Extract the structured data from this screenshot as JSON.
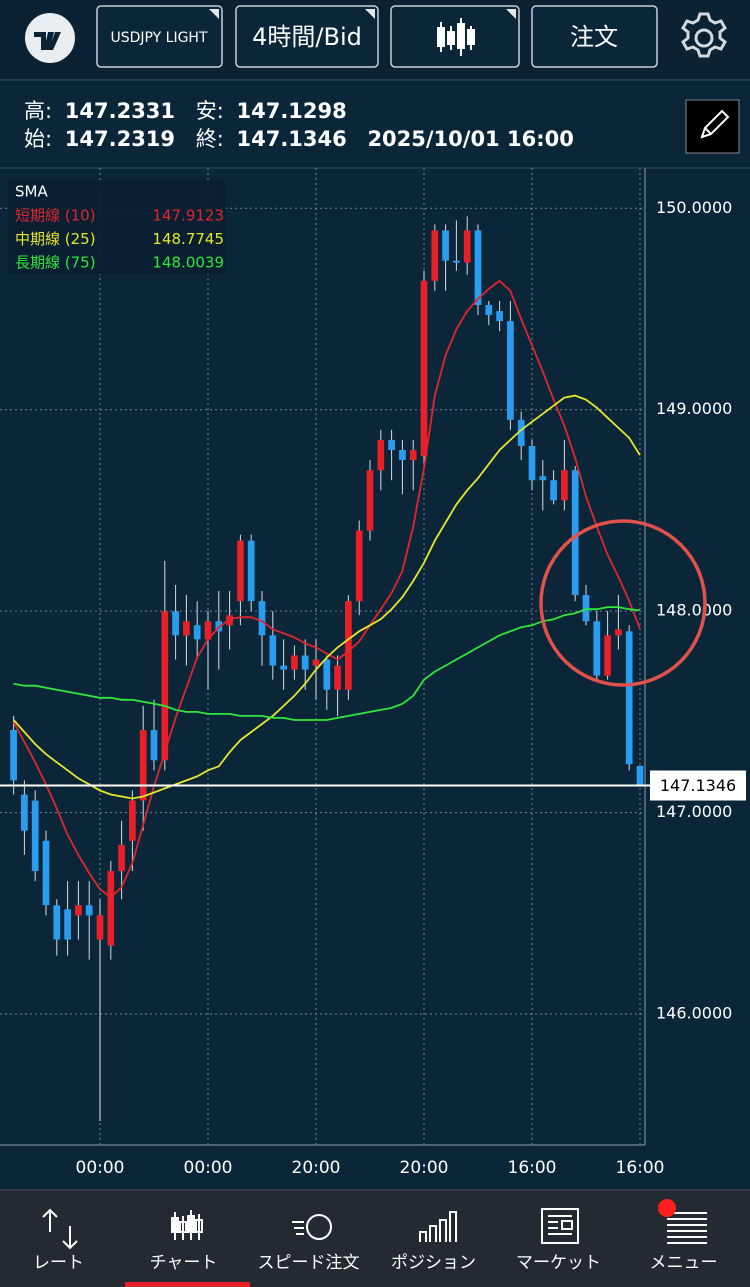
{
  "top_bar": {
    "symbol": "USDJPY LIGHT",
    "timeframe": "4時間/Bid",
    "order_button": "注文"
  },
  "ohlc_labels": {
    "high": "高:",
    "low": "安:",
    "open": "始:",
    "close": "終:"
  },
  "datetime": "2025/10/01 16:00",
  "chart_data": {
    "type": "candlestick",
    "categories": [
      null,
      null,
      null,
      null,
      null,
      null,
      null,
      null,
      "00:00",
      null,
      null,
      null,
      null,
      null,
      null,
      null,
      null,
      null,
      "00:00",
      null,
      null,
      null,
      null,
      null,
      null,
      null,
      null,
      null,
      "20:00",
      null,
      null,
      null,
      null,
      null,
      null,
      null,
      null,
      null,
      "20:00",
      null,
      null,
      null,
      null,
      null,
      null,
      null,
      null,
      null,
      "16:00",
      null,
      null,
      null,
      null,
      null,
      null,
      null,
      null,
      null,
      "16:00"
    ],
    "open": [
      147.41,
      147.09,
      147.06,
      146.86,
      146.54,
      146.52,
      146.49,
      146.54,
      146.37,
      146.34,
      146.71,
      146.86,
      147.06,
      147.41,
      147.26,
      148.0,
      147.88,
      147.93,
      147.86,
      147.95,
      147.93,
      148.05,
      148.35,
      148.05,
      147.88,
      147.73,
      147.71,
      147.78,
      147.73,
      147.76,
      147.61,
      147.61,
      148.05,
      148.4,
      148.7,
      148.85,
      148.8,
      148.75,
      148.77,
      149.64,
      149.89,
      149.74,
      149.73,
      149.89,
      149.52,
      149.49,
      149.44,
      148.95,
      148.82,
      148.67,
      148.65,
      148.55,
      148.7,
      148.08,
      147.95,
      147.68,
      147.88,
      147.9,
      147.2319
    ],
    "high": [
      147.48,
      147.16,
      147.11,
      146.91,
      146.57,
      146.66,
      146.66,
      146.66,
      146.57,
      146.76,
      146.96,
      147.11,
      147.53,
      147.56,
      148.25,
      148.13,
      148.08,
      148.05,
      148.0,
      148.1,
      148.1,
      148.38,
      148.38,
      148.1,
      148.0,
      147.86,
      147.83,
      147.86,
      147.86,
      147.78,
      147.78,
      148.08,
      148.45,
      148.75,
      148.9,
      148.9,
      148.85,
      148.85,
      149.69,
      149.92,
      149.92,
      149.94,
      149.96,
      149.92,
      149.54,
      149.54,
      149.54,
      148.99,
      148.85,
      148.75,
      148.7,
      148.85,
      148.72,
      148.13,
      148.0,
      148.0,
      148.08,
      147.93,
      147.2331
    ],
    "low": [
      147.09,
      146.79,
      146.66,
      146.49,
      146.29,
      146.29,
      146.37,
      146.27,
      145.47,
      146.27,
      146.57,
      146.71,
      146.91,
      147.21,
      147.21,
      147.76,
      147.73,
      147.76,
      147.61,
      147.71,
      147.81,
      147.93,
      148.0,
      147.73,
      147.66,
      147.61,
      147.66,
      147.61,
      147.56,
      147.51,
      147.48,
      147.56,
      147.98,
      148.35,
      148.6,
      148.65,
      148.58,
      148.6,
      148.7,
      149.59,
      149.59,
      149.69,
      149.67,
      149.47,
      149.42,
      149.39,
      148.9,
      148.75,
      148.6,
      148.5,
      148.53,
      148.5,
      148.05,
      147.93,
      147.66,
      147.66,
      147.81,
      147.21,
      147.1298
    ],
    "close": [
      147.16,
      146.91,
      146.71,
      146.54,
      146.37,
      146.37,
      146.54,
      146.49,
      146.49,
      146.71,
      146.84,
      147.06,
      147.41,
      147.26,
      148.0,
      147.88,
      147.95,
      147.86,
      147.95,
      147.9,
      147.98,
      148.35,
      148.05,
      147.88,
      147.73,
      147.71,
      147.78,
      147.71,
      147.76,
      147.61,
      147.73,
      148.05,
      148.4,
      148.7,
      148.85,
      148.8,
      148.75,
      148.8,
      149.64,
      149.89,
      149.74,
      149.73,
      149.89,
      149.52,
      149.47,
      149.44,
      148.95,
      148.82,
      148.65,
      148.65,
      148.55,
      148.7,
      148.08,
      147.95,
      147.68,
      147.88,
      147.91,
      147.24,
      147.1346
    ],
    "up_color": "#e8202a",
    "down_color": "#2a9df0",
    "ylim": [
      145.35,
      150.2
    ],
    "yticks": [
      {
        "value": 146,
        "label": "146.0000"
      },
      {
        "value": 147,
        "label": "147.0000"
      },
      {
        "value": 148,
        "label": "148.0000"
      },
      {
        "value": 149,
        "label": "149.0000"
      },
      {
        "value": 150,
        "label": "150.0000"
      }
    ],
    "grid": true,
    "legend_title": "SMA",
    "series": [
      {
        "name": "短期線 (10)",
        "color": "#e0262c",
        "values": [
          147.45,
          147.35,
          147.25,
          147.14,
          147.02,
          146.89,
          146.79,
          146.7,
          146.62,
          146.58,
          146.63,
          146.75,
          146.94,
          147.13,
          147.3,
          147.47,
          147.62,
          147.77,
          147.86,
          147.92,
          147.96,
          147.97,
          147.97,
          147.95,
          147.91,
          147.89,
          147.87,
          147.84,
          147.82,
          147.79,
          147.76,
          147.8,
          147.85,
          147.93,
          148.01,
          148.09,
          148.2,
          148.42,
          148.71,
          149.07,
          149.27,
          149.4,
          149.49,
          149.55,
          149.6,
          149.64,
          149.59,
          149.45,
          149.32,
          149.19,
          149.05,
          148.92,
          148.76,
          148.57,
          148.42,
          148.28,
          148.17,
          148.05,
          147.9123
        ]
      },
      {
        "name": "中期線 (25)",
        "color": "#e6e62e",
        "values": [
          147.46,
          147.4,
          147.34,
          147.29,
          147.25,
          147.21,
          147.17,
          147.14,
          147.11,
          147.09,
          147.08,
          147.07,
          147.08,
          147.1,
          147.12,
          147.14,
          147.16,
          147.18,
          147.21,
          147.23,
          147.3,
          147.36,
          147.4,
          147.44,
          147.48,
          147.53,
          147.58,
          147.64,
          147.71,
          147.77,
          147.82,
          147.86,
          147.9,
          147.93,
          147.96,
          148.01,
          148.07,
          148.15,
          148.24,
          148.35,
          148.44,
          148.53,
          148.6,
          148.66,
          148.73,
          148.8,
          148.85,
          148.9,
          148.94,
          148.98,
          149.02,
          149.06,
          149.07,
          149.05,
          149.01,
          148.96,
          148.91,
          148.86,
          148.7745
        ]
      },
      {
        "name": "長期線 (75)",
        "color": "#2ee83a",
        "values": [
          147.64,
          147.63,
          147.63,
          147.62,
          147.61,
          147.6,
          147.59,
          147.58,
          147.57,
          147.57,
          147.56,
          147.56,
          147.55,
          147.54,
          147.53,
          147.51,
          147.5,
          147.5,
          147.49,
          147.49,
          147.49,
          147.48,
          147.48,
          147.48,
          147.47,
          147.47,
          147.46,
          147.46,
          147.46,
          147.46,
          147.47,
          147.48,
          147.49,
          147.5,
          147.51,
          147.52,
          147.54,
          147.58,
          147.66,
          147.7,
          147.73,
          147.76,
          147.79,
          147.82,
          147.85,
          147.88,
          147.9,
          147.92,
          147.93,
          147.95,
          147.96,
          147.98,
          147.99,
          148.01,
          148.01,
          148.02,
          148.02,
          148.01,
          148.0039
        ]
      }
    ]
  },
  "tab_bar": {
    "tabs": [
      "レート",
      "チャート",
      "スピード注文",
      "ポジション",
      "マーケット",
      "メニュー"
    ],
    "active": 1
  }
}
